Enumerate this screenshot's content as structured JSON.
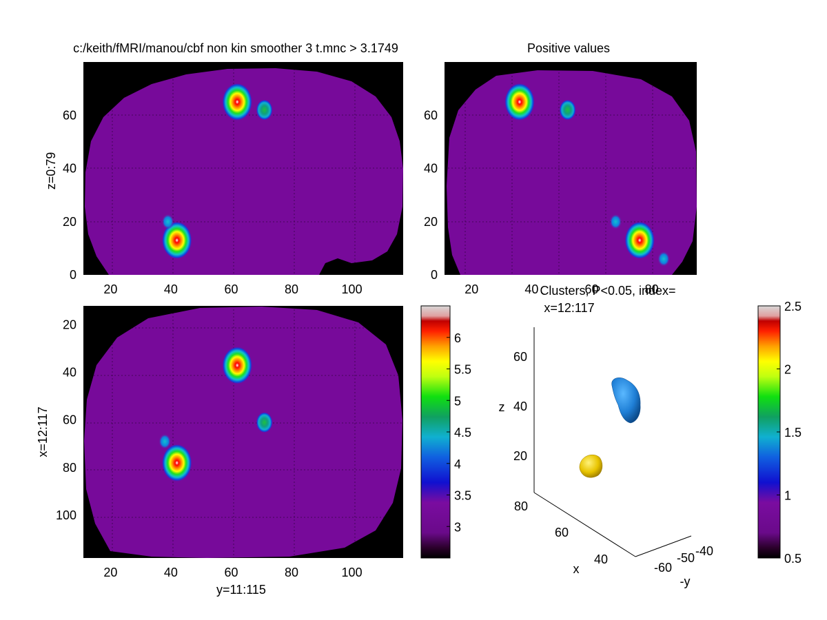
{
  "figure": {
    "panel_titles": {
      "sagittal": "c:/keith/fMRI/manou/cbf non kin smoother 3 t.mnc > 3.1749",
      "coronal": "Positive values",
      "clusters_line1": "Clusters, P<0.05, index=",
      "clusters_line2": "x=12:117"
    },
    "axis_labels": {
      "sagittal_y": "z=0:79",
      "axial_y": "x=12:117",
      "axial_x": "y=11:115",
      "cluster_z": "z",
      "cluster_x": "x",
      "cluster_y": "-y"
    }
  },
  "colors": {
    "background_slice": "#770a9a",
    "mask": "#000000",
    "cluster_blue": "#1f7fd6",
    "cluster_yellow": "#e8c400"
  },
  "chart_data": [
    {
      "type": "heatmap",
      "name": "sagittal",
      "title": "c:/keith/fMRI/manou/cbf non kin smoother 3 t.mnc > 3.1749",
      "ylabel": "z=0:79",
      "xlim": [
        11,
        117
      ],
      "ylim": [
        0,
        80
      ],
      "xticks": [
        20,
        40,
        60,
        80,
        100
      ],
      "yticks": [
        0,
        20,
        40,
        60
      ],
      "grid": true,
      "blobs": [
        {
          "x": 62,
          "y": 65,
          "peak": 6.3
        },
        {
          "x": 71,
          "y": 62,
          "peak": 4.5
        },
        {
          "x": 42,
          "y": 13,
          "peak": 6.1
        },
        {
          "x": 39,
          "y": 20,
          "peak": 3.8
        }
      ]
    },
    {
      "type": "heatmap",
      "name": "coronal",
      "title": "Positive values",
      "xlim": [
        11,
        95
      ],
      "ylim": [
        0,
        80
      ],
      "xticks": [
        20,
        40,
        60,
        80,
        100
      ],
      "yticks": [
        0,
        20,
        40,
        60
      ],
      "grid": true,
      "blobs": [
        {
          "x": 36,
          "y": 65,
          "peak": 6.3
        },
        {
          "x": 52,
          "y": 62,
          "peak": 4.5
        },
        {
          "x": 76,
          "y": 13,
          "peak": 6.1
        },
        {
          "x": 68,
          "y": 20,
          "peak": 3.8
        },
        {
          "x": 84,
          "y": 6,
          "peak": 3.3
        }
      ]
    },
    {
      "type": "heatmap",
      "name": "axial",
      "xlabel": "y=11:115",
      "ylabel": "x=12:117",
      "xlim": [
        11,
        117
      ],
      "ylim": [
        12,
        118
      ],
      "y_reversed": true,
      "xticks": [
        20,
        40,
        60,
        80,
        100
      ],
      "yticks": [
        20,
        40,
        60,
        80,
        100
      ],
      "grid": true,
      "blobs": [
        {
          "x": 62,
          "y": 37,
          "peak": 6.3
        },
        {
          "x": 71,
          "y": 61,
          "peak": 4.5
        },
        {
          "x": 42,
          "y": 78,
          "peak": 6.1
        },
        {
          "x": 38,
          "y": 69,
          "peak": 3.8
        }
      ]
    },
    {
      "type": "colorbar",
      "name": "t-colorbar",
      "range": [
        2.5,
        6.5
      ],
      "ticks": [
        "3",
        "3.5",
        "4",
        "4.5",
        "5",
        "5.5",
        "6"
      ],
      "tick_values": [
        3,
        3.5,
        4,
        4.5,
        5,
        5.5,
        6
      ]
    },
    {
      "type": "scatter",
      "name": "clusters-3d",
      "title": "Clusters, P<0.05, index=",
      "subtitle": "x=12:117",
      "xlabel": "x",
      "ylabel": "-y",
      "zlabel": "z",
      "z_ticks": [
        "20",
        "40",
        "60"
      ],
      "x_ticks": [
        "40",
        "60",
        "80"
      ],
      "y_ticks": [
        "-60",
        "-50",
        "-40"
      ],
      "clusters": [
        {
          "index": 1,
          "color": "blue",
          "z": 45
        },
        {
          "index": 2,
          "color": "yellow",
          "z": 14
        }
      ]
    },
    {
      "type": "colorbar",
      "name": "cluster-colorbar",
      "range": [
        0.5,
        2.5
      ],
      "ticks": [
        "0.5",
        "1",
        "1.5",
        "2",
        "2.5"
      ],
      "tick_values": [
        0.5,
        1,
        1.5,
        2,
        2.5
      ]
    }
  ]
}
